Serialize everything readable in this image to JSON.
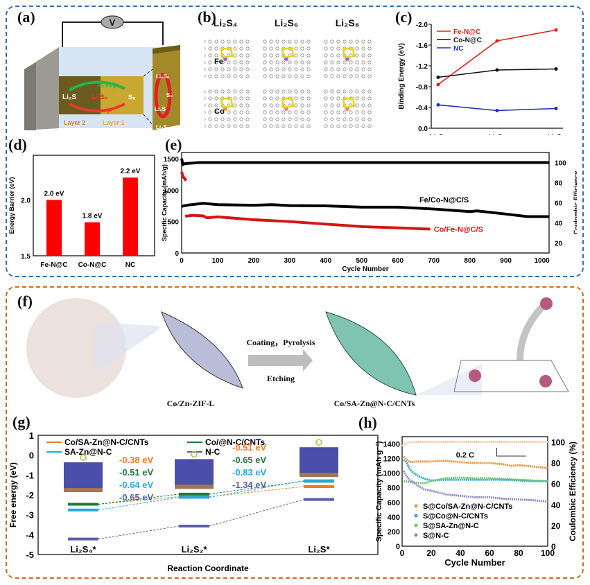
{
  "panels": {
    "a": {
      "label": "(a)",
      "voltmeter": "V",
      "layer2": "Layer 2",
      "layer1": "Layer 1",
      "species_left": "Li₂S",
      "species_mid": "Li₂Sₙ",
      "species_right": "S₈",
      "discharge": "discharge",
      "charge": "charge",
      "side_labels": [
        "Li₂Sₙ",
        "S₈",
        "Li₂S",
        "Li₂Sₙ"
      ]
    },
    "b": {
      "label": "(b)",
      "columns": [
        "Li₂S₄",
        "Li₂S₆",
        "Li₂S₈"
      ],
      "row_metals": [
        "Fe",
        "Co"
      ]
    },
    "f": {
      "label": "(f)",
      "process_top": "Coating，Pyrolysis",
      "process_bottom": "Etching",
      "precursor": "Co/Zn-ZIF-L",
      "product": "Co/SA-Zn@N-C/CNTs"
    }
  },
  "chart_data": [
    {
      "id": "c",
      "label": "(c)",
      "type": "line",
      "categories": [
        "Li₂S₄",
        "Li₂S₆",
        "Li₂S₈"
      ],
      "ylabel": "Binding Energy (eV)",
      "xlabel": "",
      "ylim": [
        0.0,
        -2.0
      ],
      "yticks": [
        "0.0",
        "-0.4",
        "-0.8",
        "-1.2",
        "-1.6",
        "-2.0"
      ],
      "inverted": true,
      "legend": "top-left",
      "series": [
        {
          "name": "Fe-N@C",
          "color": "#e0201b",
          "marker": "square",
          "values": [
            -0.84,
            -1.68,
            -1.89
          ]
        },
        {
          "name": "Co-N@C",
          "color": "#111111",
          "marker": "circle",
          "values": [
            -0.98,
            -1.12,
            -1.14
          ]
        },
        {
          "name": "NC",
          "color": "#1f2fb8",
          "marker": "triangle",
          "values": [
            -0.45,
            -0.34,
            -0.38
          ]
        }
      ]
    },
    {
      "id": "d",
      "label": "(d)",
      "type": "bar",
      "categories": [
        "Fe-N@C",
        "Co-N@C",
        "NC"
      ],
      "values": [
        2.0,
        1.8,
        2.2
      ],
      "data_labels": [
        "2.0 eV",
        "1.8 eV",
        "2.2 eV"
      ],
      "ylabel": "Energy Barrier (eV)",
      "ylim": [
        1.5,
        2.4
      ],
      "yticks": [
        "1.5",
        "2.0"
      ],
      "color": "#ff0000"
    },
    {
      "id": "e",
      "label": "(e)",
      "type": "scatter",
      "xlabel": "Cycle Number",
      "ylabel": "Specific Capacity (mAh/g)",
      "y2label": "Coulombic Efficiency",
      "xlim": [
        0,
        1020
      ],
      "ylim": [
        0,
        1600
      ],
      "y2lim": [
        10,
        110
      ],
      "xticks": [
        "0",
        "100",
        "200",
        "300",
        "400",
        "500",
        "600",
        "700",
        "800",
        "900",
        "1000"
      ],
      "yticks": [
        "0",
        "500",
        "1000",
        "1500"
      ],
      "y2ticks": [
        "20",
        "40",
        "60",
        "80",
        "100"
      ],
      "series": [
        {
          "name": "Fe/Co-N@C/S",
          "color": "#000000",
          "axis": "y",
          "x": [
            0,
            5,
            20,
            60,
            100,
            200,
            250,
            300,
            400,
            500,
            600,
            700,
            800,
            820,
            900,
            960,
            1020
          ],
          "values": [
            740,
            750,
            765,
            790,
            770,
            760,
            770,
            755,
            750,
            730,
            730,
            700,
            660,
            670,
            620,
            580,
            580
          ]
        },
        {
          "name": "Co/Fe-N@C/S",
          "color": "#d41515",
          "axis": "y",
          "x": [
            10,
            30,
            60,
            70,
            100,
            200,
            300,
            400,
            500,
            600,
            690
          ],
          "values": [
            585,
            600,
            590,
            560,
            575,
            530,
            500,
            460,
            420,
            400,
            380
          ]
        },
        {
          "name": "Fe/Co-N@C/S CE",
          "color": "#000000",
          "axis": "y2",
          "x": [
            0,
            3,
            10,
            50,
            200,
            500,
            800,
            1020
          ],
          "values": [
            104,
            98,
            99,
            100,
            100,
            100,
            100,
            100
          ]
        },
        {
          "name": "Co/Fe-N@C/S initial",
          "color": "#d41515",
          "axis": "y",
          "x": [
            0,
            3,
            6,
            9,
            12
          ],
          "values": [
            1290,
            1230,
            1200,
            1180,
            1150
          ]
        }
      ]
    },
    {
      "id": "g",
      "label": "(g)",
      "type": "line",
      "xlabel": "Reaction Coordinate",
      "ylabel": "Free energy (eV)",
      "categories": [
        "Li₂S₄*",
        "Li₂S₂*",
        "Li₂S*"
      ],
      "ylim": [
        -5,
        1
      ],
      "yticks": [
        "1",
        "0",
        "-1",
        "-2",
        "-3",
        "-4",
        "-5"
      ],
      "legend": "top",
      "series": [
        {
          "name": "Co/SA-Zn@N-C/CNTs",
          "color": "#ef7d22",
          "values": [
            -2.47,
            -2.09,
            -1.58
          ]
        },
        {
          "name": "Co/@N-C/CNTs",
          "color": "#1e7a3c",
          "values": [
            -2.47,
            -1.96,
            -1.31
          ]
        },
        {
          "name": "SA-Zn@N-C",
          "color": "#27a9dd",
          "values": [
            -2.76,
            -2.12,
            -1.29
          ]
        },
        {
          "name": "N-C",
          "color": "#5b5ea6",
          "values": [
            -4.22,
            -3.57,
            -2.23
          ]
        }
      ],
      "annotations_step1": [
        {
          "text": "-0.38 eV",
          "color": "#ef7d22"
        },
        {
          "text": "-0.51 eV",
          "color": "#1e7a3c"
        },
        {
          "text": "-0.64 eV",
          "color": "#27a9dd"
        },
        {
          "text": "-0.65 eV",
          "color": "#5b5ea6"
        }
      ],
      "annotations_step2": [
        {
          "text": "-0.51 eV",
          "color": "#ef7d22"
        },
        {
          "text": "-0.65 eV",
          "color": "#1e7a3c"
        },
        {
          "text": "-0.83 eV",
          "color": "#27a9dd"
        },
        {
          "text": "-1.34 eV",
          "color": "#5b5ea6"
        }
      ]
    },
    {
      "id": "h",
      "label": "(h)",
      "type": "scatter",
      "xlabel": "Cycle Number",
      "ylabel": "Specific Capacity (mAh g⁻¹)",
      "y2label": "Coulombic Efficiency (%)",
      "xlim": [
        0,
        100
      ],
      "ylim": [
        0,
        1500
      ],
      "y2lim": [
        0,
        105
      ],
      "xticks": [
        "0",
        "20",
        "40",
        "60",
        "80",
        "100"
      ],
      "yticks": [
        "0",
        "200",
        "400",
        "600",
        "800",
        "1000",
        "1200",
        "1400"
      ],
      "y2ticks": [
        "0",
        "20",
        "40",
        "60",
        "80",
        "100"
      ],
      "annotation": "0.2 C",
      "legend": "bottom-left",
      "series": [
        {
          "name": "S@Co/SA-Zn@N-C/CNTs",
          "color": "#f0913a",
          "x": [
            1,
            3,
            5,
            10,
            20,
            30,
            40,
            50,
            60,
            70,
            75,
            80,
            90,
            100
          ],
          "values": [
            1230,
            1190,
            1150,
            1160,
            1160,
            1170,
            1150,
            1140,
            1140,
            1120,
            1100,
            1110,
            1090,
            1070
          ]
        },
        {
          "name": "S@Co@N-C/CNTs",
          "color": "#2ba8d8",
          "x": [
            1,
            3,
            5,
            8,
            12,
            16,
            20,
            30,
            40,
            50,
            60,
            70,
            80,
            90,
            100
          ],
          "values": [
            1180,
            1150,
            1060,
            1000,
            950,
            920,
            900,
            910,
            910,
            910,
            910,
            910,
            900,
            890,
            890
          ]
        },
        {
          "name": "S@SA-Zn@N-C",
          "color": "#6cc46a",
          "x": [
            1,
            5,
            10,
            15,
            20,
            30,
            40,
            50,
            60,
            70,
            80,
            90,
            100
          ],
          "values": [
            890,
            880,
            870,
            860,
            890,
            930,
            940,
            930,
            930,
            920,
            910,
            900,
            890
          ]
        },
        {
          "name": "S@N-C",
          "color": "#8d87c6",
          "x": [
            1,
            3,
            5,
            10,
            15,
            20,
            30,
            40,
            50,
            60,
            70,
            80,
            90,
            100
          ],
          "values": [
            1030,
            960,
            910,
            840,
            780,
            760,
            710,
            690,
            670,
            670,
            650,
            640,
            630,
            610
          ]
        },
        {
          "name": "CE",
          "color": "#f6c9a0",
          "axis": "y2",
          "x": [
            0,
            2,
            5,
            10,
            20,
            50,
            100
          ],
          "values": [
            96,
            98,
            99.5,
            100,
            100,
            100,
            100
          ]
        }
      ]
    }
  ]
}
